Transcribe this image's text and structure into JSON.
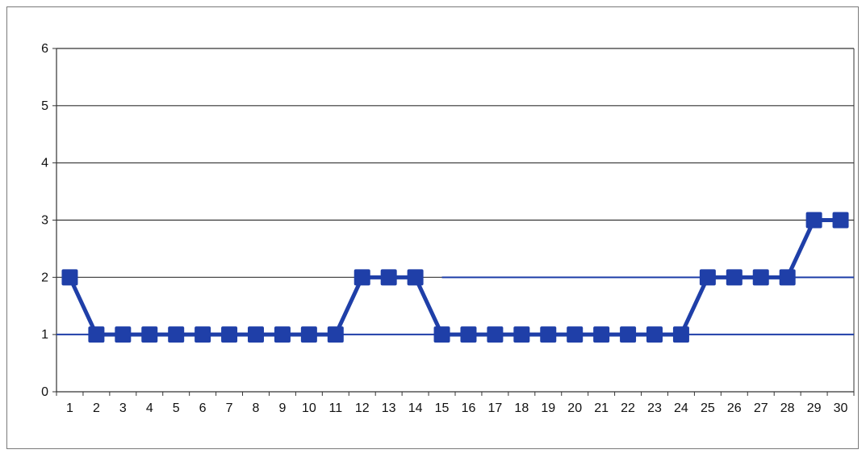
{
  "chart_data": {
    "type": "line",
    "title": "",
    "xlabel": "",
    "ylabel": "",
    "categories": [
      "1",
      "2",
      "3",
      "4",
      "5",
      "6",
      "7",
      "8",
      "9",
      "10",
      "11",
      "12",
      "13",
      "14",
      "15",
      "16",
      "17",
      "18",
      "19",
      "20",
      "21",
      "22",
      "23",
      "24",
      "25",
      "26",
      "27",
      "28",
      "29",
      "30"
    ],
    "series": [
      {
        "values": [
          2,
          1,
          1,
          1,
          1,
          1,
          1,
          1,
          1,
          1,
          1,
          2,
          2,
          2,
          1,
          1,
          1,
          1,
          1,
          1,
          1,
          1,
          1,
          1,
          2,
          2,
          2,
          2,
          3,
          3
        ],
        "color": "#1f3fa8",
        "marker": "square"
      }
    ],
    "reference_lines": [
      {
        "y": 1,
        "color": "#1f3fa8"
      },
      {
        "y": 2,
        "color": "#1f3fa8",
        "x_start": 15
      }
    ],
    "ylim": [
      0,
      6
    ],
    "yticks": [
      "0",
      "1",
      "2",
      "3",
      "4",
      "5",
      "6"
    ],
    "grid": true,
    "legend": "none"
  }
}
